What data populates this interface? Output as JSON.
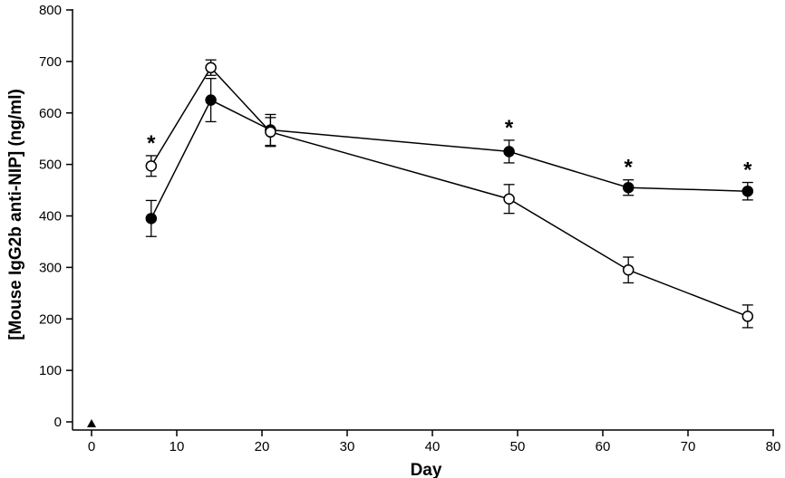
{
  "chart_data": {
    "type": "line",
    "title": "",
    "xlabel": "Day",
    "ylabel": "[Mouse IgG2b anti-NIP] (ng/ml)",
    "xlim": [
      -2,
      80
    ],
    "ylim": [
      0,
      800
    ],
    "xticks": [
      0,
      10,
      20,
      30,
      40,
      50,
      60,
      70,
      80
    ],
    "yticks": [
      0,
      100,
      200,
      300,
      400,
      500,
      600,
      700,
      800
    ],
    "grid": false,
    "legend": "none",
    "series": [
      {
        "marker": "filled-circle",
        "color": "#000000",
        "x": [
          7,
          14,
          21,
          49,
          63,
          77
        ],
        "values": [
          395,
          625,
          567,
          525,
          455,
          448
        ],
        "error": [
          35,
          42,
          30,
          22,
          15,
          17
        ]
      },
      {
        "marker": "open-circle",
        "color": "#000000",
        "x": [
          7,
          14,
          21,
          49,
          63,
          77
        ],
        "values": [
          497,
          688,
          563,
          433,
          295,
          205
        ],
        "error": [
          20,
          15,
          28,
          28,
          25,
          22
        ]
      }
    ],
    "annotations": [
      {
        "text": "*",
        "x": 7
      },
      {
        "text": "*",
        "x": 49
      },
      {
        "text": "*",
        "x": 63
      },
      {
        "text": "*",
        "x": 77
      }
    ],
    "markers_on_axis": [
      {
        "shape": "filled-triangle",
        "x": 0
      }
    ]
  }
}
